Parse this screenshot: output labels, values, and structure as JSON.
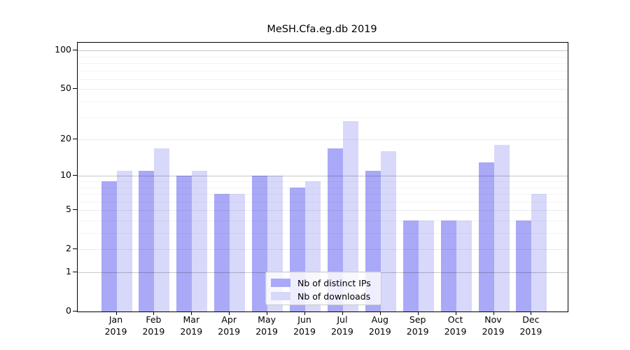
{
  "title": "MeSH.Cfa.eg.db 2019",
  "chart_data": {
    "type": "bar",
    "title": "MeSH.Cfa.eg.db 2019",
    "scale": "log1p",
    "grid": true,
    "categories": [
      "Jan",
      "Feb",
      "Mar",
      "Apr",
      "May",
      "Jun",
      "Jul",
      "Aug",
      "Sep",
      "Oct",
      "Nov",
      "Dec"
    ],
    "year": "2019",
    "series": [
      {
        "name": "Nb of distinct IPs",
        "color": "#a9a9f7",
        "values": [
          9,
          11,
          10,
          7,
          10,
          8,
          17,
          11,
          4,
          4,
          13,
          4
        ]
      },
      {
        "name": "Nb of downloads",
        "color": "#d8d8fb",
        "values": [
          11,
          17,
          11,
          7,
          10,
          9,
          28,
          16,
          4,
          4,
          18,
          7
        ]
      }
    ],
    "yticks": [
      0,
      1,
      2,
      5,
      10,
      20,
      50,
      100
    ],
    "ylim": [
      0,
      115
    ],
    "xlabel": "",
    "ylabel": "",
    "legend_position": "lower center",
    "colors": {
      "major_grid": "#c8c8c8",
      "axis": "#000000",
      "background": "#ffffff"
    }
  }
}
